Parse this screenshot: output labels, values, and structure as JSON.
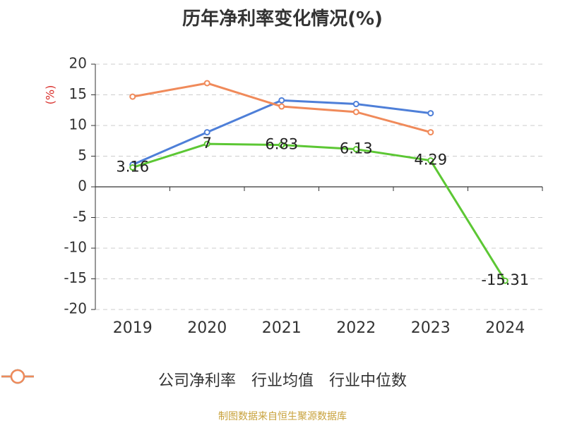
{
  "title": "历年净利率变化情况(%)",
  "source_text": "制图数据来自恒生聚源数据库",
  "chart_data": {
    "type": "line",
    "title": "历年净利率变化情况(%)",
    "xlabel": "",
    "ylabel": "(%)",
    "categories": [
      "2019",
      "2020",
      "2021",
      "2022",
      "2023",
      "2024"
    ],
    "ylim": [
      -20,
      20
    ],
    "yticks": [
      20,
      15,
      10,
      5,
      0,
      -5,
      -10,
      -15,
      -20
    ],
    "grid": true,
    "legend_position": "bottom",
    "series": [
      {
        "name": "公司净利率",
        "color": "#5cc734",
        "values": [
          3.16,
          7,
          6.83,
          6.13,
          4.29,
          -15.31
        ],
        "labels": [
          "3.16",
          "7",
          "6.83",
          "6.13",
          "4.29",
          "-15.31"
        ]
      },
      {
        "name": "行业均值",
        "color": "#4e7fd8",
        "values": [
          3.6,
          8.9,
          14.1,
          13.5,
          12.0,
          null
        ]
      },
      {
        "name": "行业中位数",
        "color": "#f08a5a",
        "values": [
          14.7,
          16.9,
          13.1,
          12.2,
          8.9,
          null
        ]
      }
    ]
  }
}
